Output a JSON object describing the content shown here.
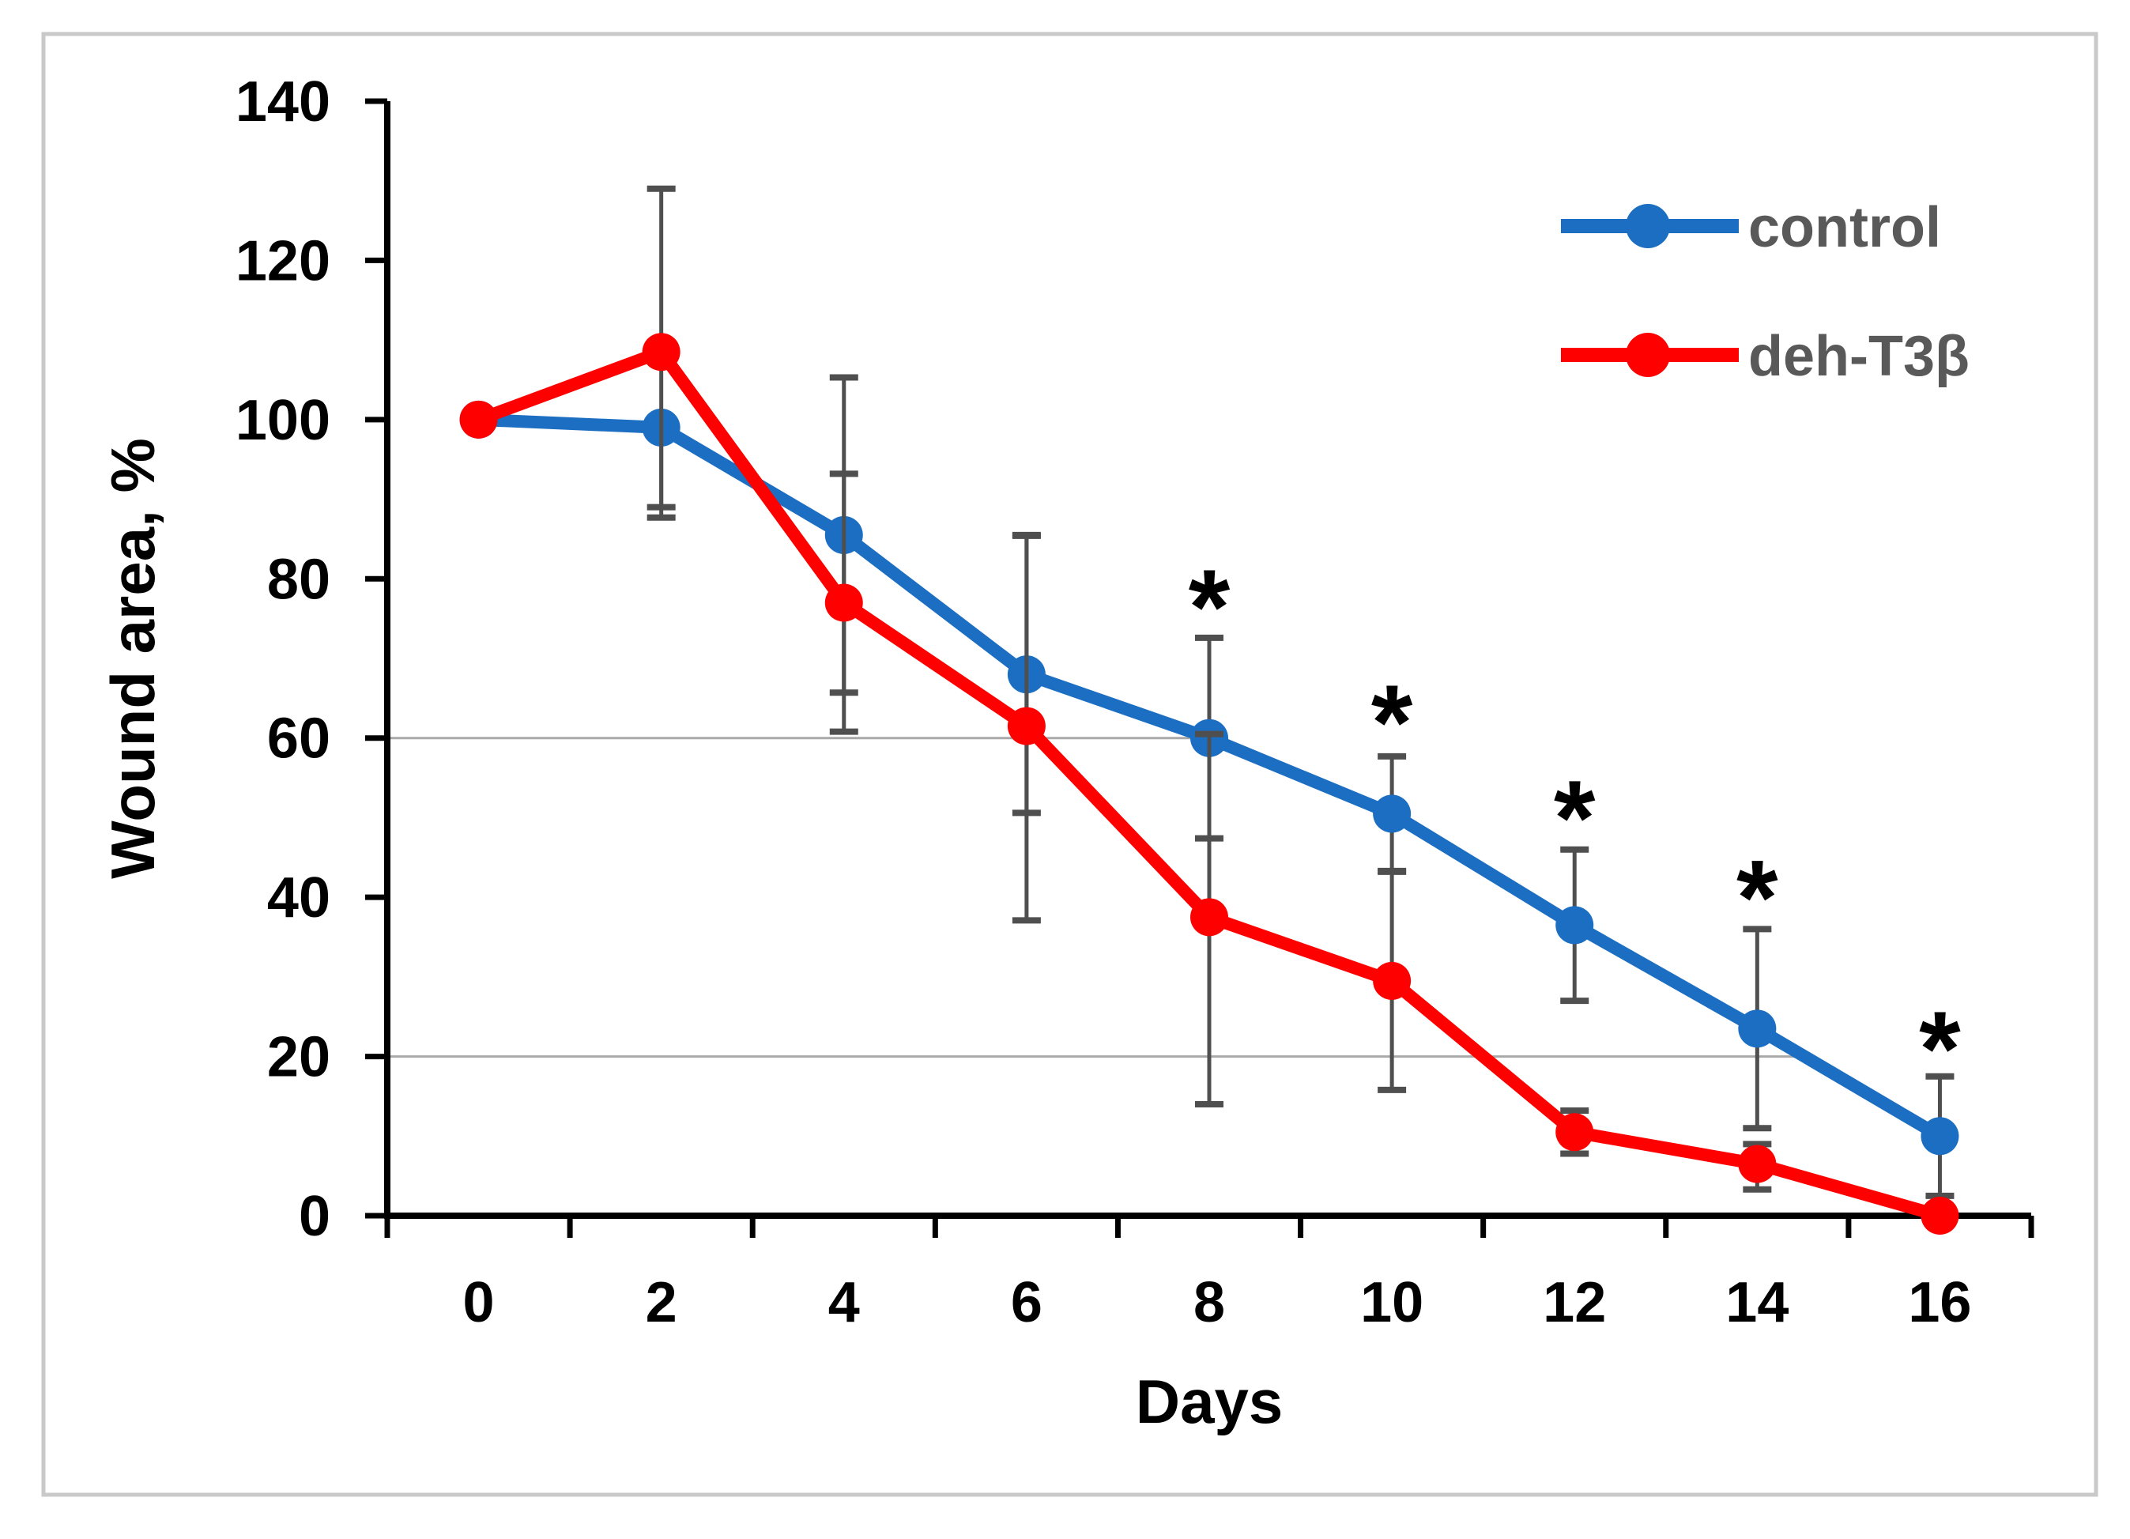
{
  "figure": {
    "background": "#ffffff",
    "border_color": "#c9c9c9",
    "axis_color": "#000000",
    "error_bar_color": "#4f4f4f",
    "partial_gridline_color": "#a9a9a9",
    "legend_text_color": "#595959"
  },
  "chart_data": {
    "type": "line",
    "title": "",
    "xlabel": "Days",
    "ylabel": "Wound area, %",
    "x": [
      0,
      2,
      4,
      6,
      8,
      10,
      12,
      14,
      16
    ],
    "ylim": [
      0,
      140
    ],
    "yticks": [
      0,
      20,
      40,
      60,
      80,
      100,
      120,
      140
    ],
    "grid": "partial",
    "legend_position": "top-right",
    "series": [
      {
        "name": "control",
        "color": "#1b6ec2",
        "values": [
          100,
          99,
          85.5,
          68,
          60,
          50.5,
          36.5,
          23.5,
          10
        ],
        "err_down": [
          0,
          11.3,
          19.8,
          17.4,
          12.6,
          7.2,
          9.5,
          12.5,
          7.5
        ],
        "err_up": [
          0,
          0,
          19.8,
          17.4,
          12.6,
          7.2,
          9.5,
          12.5,
          7.5
        ]
      },
      {
        "name": "deh-T3β",
        "color": "#fe0000",
        "values": [
          100,
          108.5,
          77,
          61.5,
          37.5,
          29.5,
          10.5,
          6.5,
          0
        ],
        "err_down": [
          0,
          19.5,
          16.2,
          24.4,
          23.5,
          13.7,
          2.7,
          3.2,
          0
        ],
        "err_up": [
          0,
          20.5,
          16.2,
          24,
          23,
          13.7,
          2.7,
          2.5,
          0
        ]
      }
    ],
    "annotations": {
      "symbol": "*",
      "meaning": "significant difference",
      "points": [
        {
          "day": 8,
          "y": 78.5
        },
        {
          "day": 10,
          "y": 64
        },
        {
          "day": 12,
          "y": 52
        },
        {
          "day": 14,
          "y": 42
        },
        {
          "day": 16,
          "y": 23
        }
      ]
    },
    "partial_gridlines": [
      {
        "y": 60,
        "to_day": 8
      },
      {
        "y": 20,
        "to_day": 14.5
      }
    ]
  }
}
